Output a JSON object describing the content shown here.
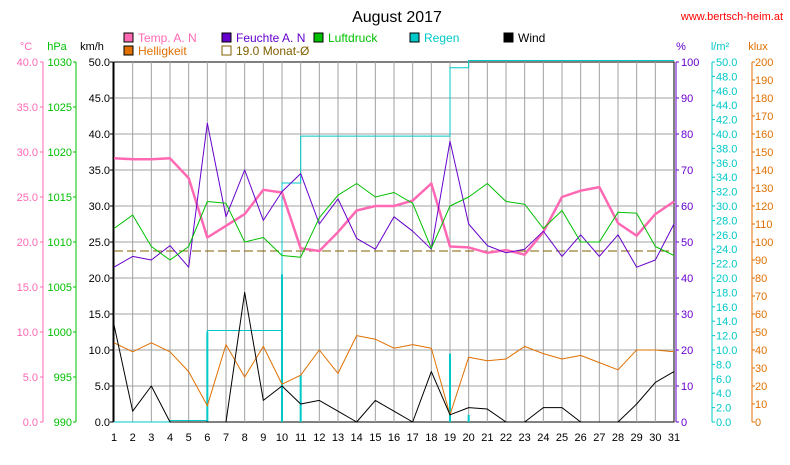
{
  "chart_data": {
    "type": "line",
    "title": "August 2017",
    "source": "www.bertsch-heim.at",
    "days": [
      1,
      2,
      3,
      4,
      5,
      6,
      7,
      8,
      9,
      10,
      11,
      12,
      13,
      14,
      15,
      16,
      17,
      18,
      19,
      20,
      21,
      22,
      23,
      24,
      25,
      26,
      27,
      28,
      29,
      30,
      31
    ],
    "axes": [
      {
        "unit": "°C",
        "color": "#ff69b4",
        "range": [
          0,
          40
        ],
        "ticks": [
          "0.0",
          "5.0",
          "10.0",
          "15.0",
          "20.0",
          "25.0",
          "30.0",
          "35.0",
          "40.0"
        ]
      },
      {
        "unit": "hPa",
        "color": "#00c000",
        "range": [
          990,
          1030
        ],
        "ticks": [
          "990",
          "995",
          "1000",
          "1005",
          "1010",
          "1015",
          "1020",
          "1025",
          "1030"
        ]
      },
      {
        "unit": "km/h",
        "color": "#000000",
        "range": [
          0,
          50
        ],
        "ticks": [
          "0.0",
          "5.0",
          "10.0",
          "15.0",
          "20.0",
          "25.0",
          "30.0",
          "35.0",
          "40.0",
          "45.0",
          "50.0"
        ]
      },
      {
        "unit": "%",
        "color": "#6600cc",
        "range": [
          0,
          100
        ],
        "ticks": [
          "0",
          "10",
          "20",
          "30",
          "40",
          "50",
          "60",
          "70",
          "80",
          "90",
          "100"
        ]
      },
      {
        "unit": "l/m²",
        "color": "#00c8c8",
        "range": [
          0,
          50
        ],
        "ticks": [
          "0.0",
          "2.0",
          "4.0",
          "6.0",
          "8.0",
          "10.0",
          "12.0",
          "14.0",
          "16.0",
          "18.0",
          "20.0",
          "22.0",
          "24.0",
          "26.0",
          "28.0",
          "30.0",
          "32.0",
          "34.0",
          "36.0",
          "38.0",
          "40.0",
          "42.0",
          "44.0",
          "46.0",
          "48.0",
          "50.0"
        ]
      },
      {
        "unit": "klux",
        "color": "#e07000",
        "range": [
          0,
          200
        ],
        "ticks": [
          "0",
          "10",
          "20",
          "30",
          "40",
          "50",
          "60",
          "70",
          "80",
          "90",
          "100",
          "110",
          "120",
          "130",
          "140",
          "150",
          "160",
          "170",
          "180",
          "190",
          "200"
        ]
      }
    ],
    "legend": [
      {
        "label": "Temp. A. N",
        "color": "#ff69b4",
        "style": "filled"
      },
      {
        "label": "Feuchte A. N",
        "color": "#6600cc",
        "style": "filled"
      },
      {
        "label": "Luftdruck",
        "color": "#00c000",
        "style": "filled"
      },
      {
        "label": "Regen",
        "color": "#00c8c8",
        "style": "filled"
      },
      {
        "label": "Wind",
        "color": "#000000",
        "style": "filled"
      },
      {
        "label": "Helligkeit",
        "color": "#e07000",
        "style": "filled"
      },
      {
        "label": "19.0 Monat-Ø",
        "color": "#806000",
        "style": "outline"
      }
    ],
    "monthly_mean_temp": 19.0,
    "series": [
      {
        "name": "Temp. A. N",
        "axis": 0,
        "color": "#ff69b4",
        "values": [
          29.3,
          29.2,
          29.2,
          29.3,
          27.1,
          20.5,
          21.8,
          23.1,
          25.8,
          25.5,
          19.3,
          19.0,
          21.1,
          23.5,
          24.0,
          24.0,
          24.6,
          26.5,
          19.5,
          19.4,
          18.8,
          19.1,
          18.6,
          21.1,
          25.0,
          25.7,
          26.1,
          22.1,
          20.7,
          23.1,
          24.5
        ],
        "width": 2.5
      },
      {
        "name": "Feuchte A. N",
        "axis": 3,
        "color": "#6600cc",
        "values": [
          43,
          46,
          45,
          49,
          43,
          83,
          57,
          70,
          56,
          64,
          69,
          55,
          62,
          51,
          48,
          57,
          53,
          48,
          78,
          55,
          49,
          47,
          48,
          53,
          46,
          52,
          46,
          52,
          43,
          45,
          55
        ],
        "width": 1
      },
      {
        "name": "Luftdruck",
        "axis": 1,
        "color": "#00c000",
        "values": [
          1011.5,
          1013.0,
          1009.5,
          1008.0,
          1009.5,
          1014.5,
          1014.3,
          1010.0,
          1010.5,
          1008.5,
          1008.3,
          1012.7,
          1015.2,
          1016.5,
          1015.0,
          1015.5,
          1014.3,
          1009.3,
          1014.0,
          1015.0,
          1016.5,
          1014.5,
          1014.2,
          1011.5,
          1013.5,
          1010.0,
          1010.0,
          1013.3,
          1013.2,
          1009.5,
          1008.5
        ],
        "width": 1
      },
      {
        "name": "Helligkeit",
        "axis": 5,
        "color": "#e07000",
        "values": [
          44,
          39,
          44,
          39,
          28,
          9,
          43,
          25,
          42,
          21,
          26,
          40,
          27,
          48,
          46,
          41,
          43,
          41,
          4,
          36,
          34,
          35,
          42,
          38,
          35,
          37,
          33,
          29,
          40,
          40,
          39
        ],
        "width": 1
      },
      {
        "name": "Wind",
        "axis": 2,
        "color": "#000000",
        "values": [
          13.5,
          1.5,
          5.0,
          0.0,
          0.0,
          0.0,
          0.0,
          18.0,
          3.0,
          5.0,
          2.5,
          3.0,
          1.5,
          0.0,
          3.0,
          1.5,
          0.0,
          7.0,
          1.0,
          2.0,
          1.8,
          0.0,
          0.0,
          2.0,
          2.0,
          0.0,
          0.0,
          0.0,
          2.5,
          5.5,
          7.0
        ],
        "width": 1
      }
    ],
    "rain": {
      "name": "Regen",
      "axis": 4,
      "color": "#00c8c8",
      "daily": [
        0,
        0,
        0,
        0.2,
        0,
        12.5,
        0,
        0,
        0,
        20.5,
        6.5,
        0,
        0,
        0,
        0,
        0,
        0,
        0,
        9.5,
        1.0,
        0,
        0,
        0,
        0,
        0,
        0,
        0,
        0,
        0,
        0,
        0
      ],
      "cumulative": [
        0,
        0,
        0,
        0.2,
        0.2,
        12.7,
        12.7,
        12.7,
        12.7,
        33.2,
        39.7,
        39.7,
        39.7,
        39.7,
        39.7,
        39.7,
        39.7,
        39.7,
        49.2,
        50.2,
        50.2,
        50.2,
        50.2,
        50.2,
        50.2,
        50.2,
        50.2,
        50.2,
        50.2,
        50.2,
        50.2
      ]
    }
  }
}
